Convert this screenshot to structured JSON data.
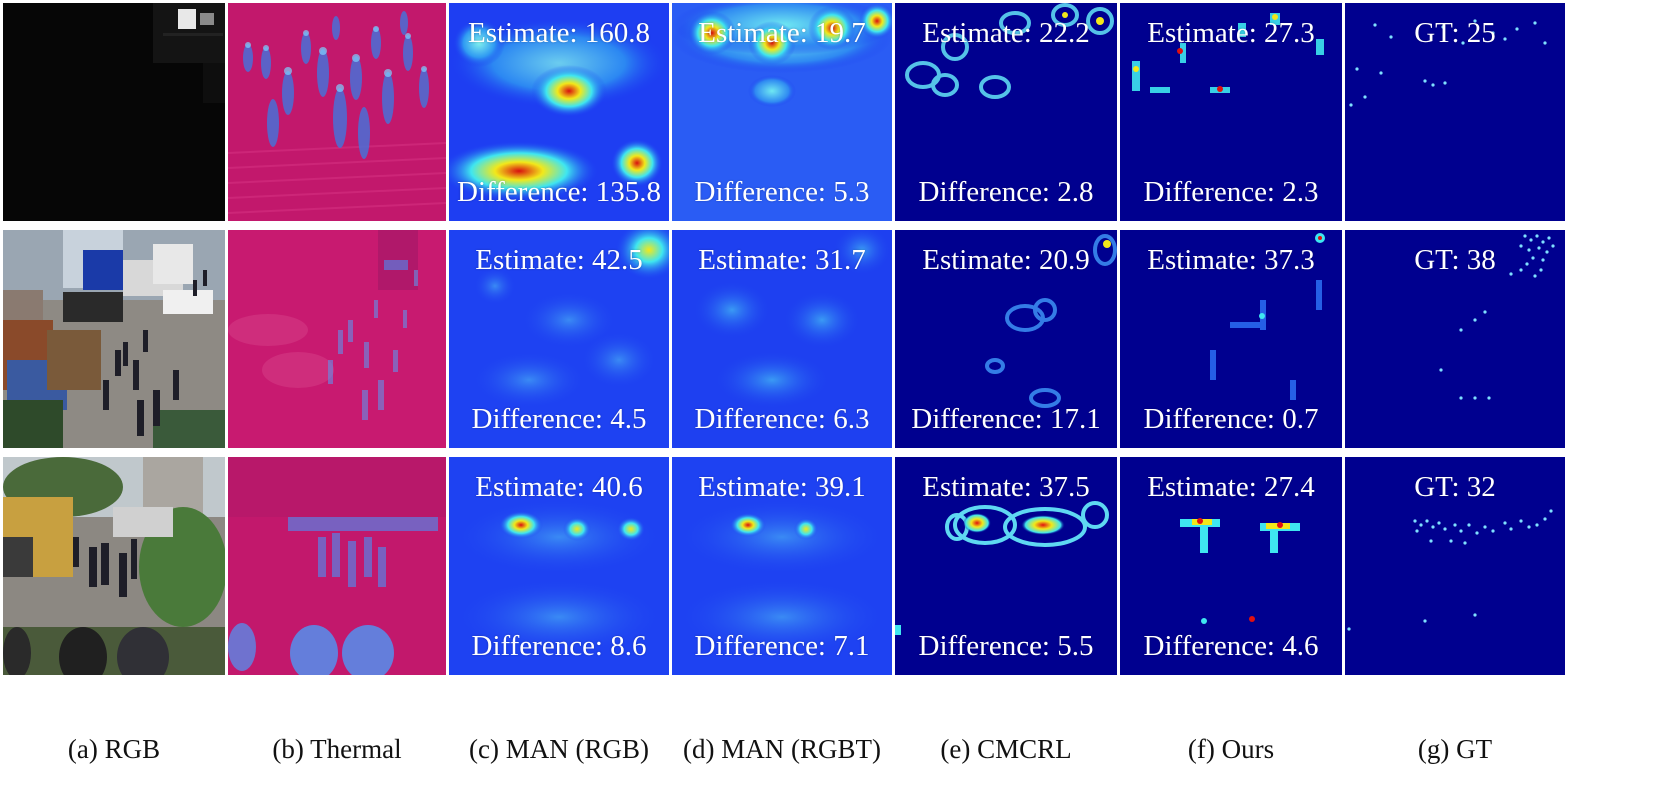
{
  "columns": [
    {
      "key": "rgb",
      "caption": "(a) RGB"
    },
    {
      "key": "thermal",
      "caption": "(b) Thermal"
    },
    {
      "key": "man_rgb",
      "caption": "(c) MAN (RGB)"
    },
    {
      "key": "man_rgbt",
      "caption": "(d) MAN (RGBT)"
    },
    {
      "key": "cmcrl",
      "caption": "(e) CMCRL"
    },
    {
      "key": "ours",
      "caption": "(f) Ours"
    },
    {
      "key": "gt",
      "caption": "(g) GT"
    }
  ],
  "rows": [
    {
      "rgb_scene": "dark night plaza",
      "thermal_scene": "crowd on stairs",
      "maps": {
        "man_rgb": {
          "estimate": "Estimate: 160.8",
          "difference": "Difference: 135.8"
        },
        "man_rgbt": {
          "estimate": "Estimate: 19.7",
          "difference": "Difference: 5.3"
        },
        "cmcrl": {
          "estimate": "Estimate: 22.2",
          "difference": "Difference: 2.8"
        },
        "ours": {
          "estimate": "Estimate: 27.3",
          "difference": "Difference: 2.3"
        }
      },
      "gt": "GT: 25"
    },
    {
      "rgb_scene": "street with cars and pedestrians",
      "thermal_scene": "street with cars",
      "maps": {
        "man_rgb": {
          "estimate": "Estimate: 42.5",
          "difference": "Difference: 4.5"
        },
        "man_rgbt": {
          "estimate": "Estimate: 31.7",
          "difference": "Difference: 6.3"
        },
        "cmcrl": {
          "estimate": "Estimate: 20.9",
          "difference": "Difference: 17.1"
        },
        "ours": {
          "estimate": "Estimate: 37.3",
          "difference": "Difference: 0.7"
        }
      },
      "gt": "GT: 38"
    },
    {
      "rgb_scene": "daytime square with truck",
      "thermal_scene": "daytime square crowd",
      "maps": {
        "man_rgb": {
          "estimate": "Estimate: 40.6",
          "difference": "Difference: 8.6"
        },
        "man_rgbt": {
          "estimate": "Estimate: 39.1",
          "difference": "Difference: 7.1"
        },
        "cmcrl": {
          "estimate": "Estimate: 37.5",
          "difference": "Difference: 5.5"
        },
        "ours": {
          "estimate": "Estimate: 27.4",
          "difference": "Difference: 4.6"
        }
      },
      "gt": "GT: 32"
    }
  ],
  "colors": {
    "heat_bg_smooth": "#1c3cf0",
    "heat_bg_sharp": "#00008f",
    "thermal_bg": "#c4186e",
    "peak_red": "#e01010",
    "peak_yellow": "#f2e81a",
    "peak_cyan": "#3fe6f0"
  }
}
